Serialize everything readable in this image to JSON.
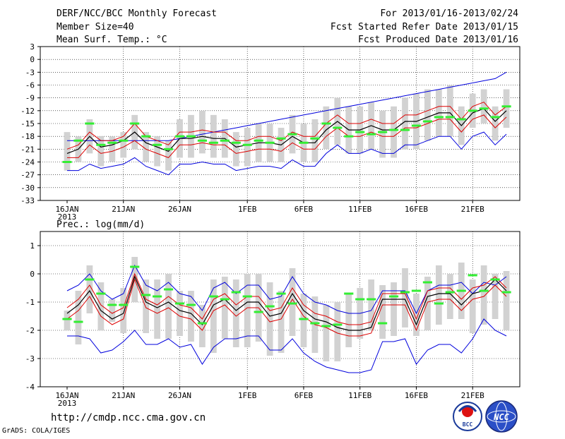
{
  "header": {
    "title_left": "DERF/NCC/BCC Monthly Forecast",
    "member_size": "Member Size=40",
    "variable_label": "Mean Surf. Temp.: °C",
    "period": "For 2013/01/16-2013/02/24",
    "started": "Fcst Started Refer Date 2013/01/15",
    "produced": "Fcst Produced Date 2013/01/16"
  },
  "footer": {
    "url": "http://cmdp.ncc.cma.gov.cn",
    "credit": "GrADS: COLA/IGES",
    "logo_bcc_text": "BCC",
    "logo_ncc_text": "NCC"
  },
  "colors": {
    "box": "#d2d2d2",
    "envelope": "#0000dd",
    "spread": "#dd0000",
    "mean": "#000000",
    "obs": "#33ee33",
    "grid": "#000000"
  },
  "chart_data": [
    {
      "type": "line",
      "title": "Mean Surf. Temp.: °C",
      "x_tick_labels": [
        "16JAN",
        "21JAN",
        "26JAN",
        "1FEB",
        "6FEB",
        "11FEB",
        "16FEB",
        "21FEB"
      ],
      "x_tick_days": [
        0,
        5,
        10,
        16,
        21,
        26,
        31,
        36
      ],
      "x_year_label": "2013",
      "days": 40,
      "ylim": [
        -33,
        3
      ],
      "y_ticks": [
        3,
        0,
        -3,
        -6,
        -9,
        -12,
        -15,
        -18,
        -21,
        -24,
        -27,
        -30,
        -33
      ],
      "series": [
        {
          "name": "ensemble max",
          "values": [
            -19,
            -19,
            -19,
            -19,
            -19,
            -19,
            -19,
            -19,
            -19,
            -19,
            -18.5,
            -18,
            -17.5,
            -17,
            -16.5,
            -16,
            -15.5,
            -15,
            -14.5,
            -14,
            -13.5,
            -13,
            -12.5,
            -12,
            -11.5,
            -11,
            -10.5,
            -10,
            -9.5,
            -9,
            -8.5,
            -8,
            -7.5,
            -7,
            -6.5,
            -6,
            -5.5,
            -5,
            -4.5,
            -3
          ]
        },
        {
          "name": "upper spread",
          "values": [
            -21,
            -20,
            -17,
            -19,
            -19,
            -18,
            -15,
            -18,
            -19,
            -20,
            -17,
            -17,
            -16.5,
            -17,
            -17,
            -19,
            -19,
            -18,
            -18,
            -19,
            -17,
            -18,
            -18,
            -15,
            -13,
            -15,
            -15,
            -14,
            -15,
            -15,
            -13,
            -13,
            -12,
            -11,
            -11,
            -14,
            -11,
            -10,
            -13,
            -11
          ]
        },
        {
          "name": "ensemble mean",
          "values": [
            -22,
            -21,
            -18,
            -20.5,
            -20,
            -19,
            -17,
            -19.5,
            -20.5,
            -21.5,
            -18.5,
            -18.5,
            -18,
            -18.5,
            -18.5,
            -20.5,
            -20,
            -19.5,
            -19.5,
            -20,
            -18,
            -19.5,
            -19.5,
            -16.5,
            -14.5,
            -16.5,
            -16.5,
            -15.5,
            -16.5,
            -16.5,
            -14.5,
            -14.5,
            -13.5,
            -12.5,
            -12.5,
            -15.5,
            -12.5,
            -11.5,
            -14.5,
            -12
          ]
        },
        {
          "name": "lower spread",
          "values": [
            -23,
            -23,
            -20,
            -22,
            -21.5,
            -20.5,
            -19,
            -21,
            -22,
            -23,
            -20,
            -20,
            -19.5,
            -20,
            -20,
            -22,
            -21.5,
            -21,
            -21,
            -21.5,
            -19.5,
            -21,
            -21,
            -18,
            -16,
            -18,
            -18,
            -17,
            -18,
            -18,
            -16,
            -16,
            -15,
            -14,
            -14,
            -17,
            -14,
            -13,
            -16,
            -13.5
          ]
        },
        {
          "name": "ensemble min",
          "values": [
            -26,
            -26,
            -24.5,
            -25.5,
            -25,
            -24.5,
            -23,
            -25,
            -26,
            -27,
            -24.5,
            -24.5,
            -24,
            -24.5,
            -24.5,
            -26,
            -25.5,
            -25,
            -25,
            -25.5,
            -23.5,
            -25,
            -25,
            -22,
            -20,
            -22,
            -22,
            -21,
            -22,
            -22,
            -20,
            -20,
            -19,
            -18,
            -18,
            -21,
            -18,
            -17,
            -20,
            -17.5
          ]
        },
        {
          "name": "observed",
          "values": [
            -24,
            -19,
            -15,
            -20,
            -19.5,
            -19,
            -15,
            -18,
            -20,
            -21,
            -18,
            -18,
            -19,
            -19.5,
            -19,
            -19.5,
            -20,
            -19,
            -19.5,
            -18.5,
            -17.5,
            -19.5,
            -18.5,
            -15,
            -16,
            -18,
            -17,
            -17.5,
            -17,
            -16.5,
            -16.5,
            -15.5,
            -14.5,
            -13.5,
            -13.5,
            -14,
            -12,
            -11.5,
            -13.5,
            -11
          ]
        }
      ],
      "box_ranges": [
        [
          -26,
          -17
        ],
        [
          -24,
          -18
        ],
        [
          -22,
          -14
        ],
        [
          -25,
          -18
        ],
        [
          -24,
          -18
        ],
        [
          -23,
          -17
        ],
        [
          -21,
          -13
        ],
        [
          -24,
          -17
        ],
        [
          -25,
          -18
        ],
        [
          -26,
          -19
        ],
        [
          -23,
          -14
        ],
        [
          -23,
          -13
        ],
        [
          -22,
          -12
        ],
        [
          -23,
          -13
        ],
        [
          -23,
          -14
        ],
        [
          -25,
          -17
        ],
        [
          -25,
          -16
        ],
        [
          -24,
          -15
        ],
        [
          -24,
          -15
        ],
        [
          -24,
          -16
        ],
        [
          -22,
          -13
        ],
        [
          -24,
          -15
        ],
        [
          -24,
          -14
        ],
        [
          -21,
          -11
        ],
        [
          -20,
          -9
        ],
        [
          -22,
          -11
        ],
        [
          -22,
          -11
        ],
        [
          -21,
          -10
        ],
        [
          -23,
          -12
        ],
        [
          -23,
          -11
        ],
        [
          -21,
          -9
        ],
        [
          -21,
          -8
        ],
        [
          -19,
          -7
        ],
        [
          -18,
          -7
        ],
        [
          -18,
          -6
        ],
        [
          -20,
          -11
        ],
        [
          -16,
          -8
        ],
        [
          -15,
          -7
        ],
        [
          -19,
          -11
        ],
        [
          -16,
          -7
        ]
      ]
    },
    {
      "type": "line",
      "title": "Prec.: log(mm/d)",
      "x_tick_labels": [
        "16JAN",
        "21JAN",
        "26JAN",
        "1FEB",
        "6FEB",
        "11FEB",
        "16FEB",
        "21FEB"
      ],
      "x_tick_days": [
        0,
        5,
        10,
        16,
        21,
        26,
        31,
        36
      ],
      "x_year_label": "2013",
      "days": 40,
      "ylim": [
        -4,
        1.5
      ],
      "y_ticks": [
        1,
        0,
        -1,
        -2,
        -3,
        -4
      ],
      "series": [
        {
          "name": "ensemble max",
          "values": [
            -0.6,
            -0.4,
            0,
            -0.6,
            -0.9,
            -0.7,
            0.3,
            -0.4,
            -0.6,
            -0.3,
            -0.7,
            -0.8,
            -1.3,
            -0.5,
            -0.3,
            -0.7,
            -0.4,
            -0.4,
            -0.9,
            -0.8,
            -0.1,
            -0.7,
            -1,
            -1.1,
            -1.3,
            -1.4,
            -1.4,
            -1.3,
            -0.6,
            -0.6,
            -0.6,
            -1.4,
            -0.6,
            -0.4,
            -0.4,
            -0.3,
            -0.7,
            -0.3,
            -0.4,
            -0.1
          ]
        },
        {
          "name": "upper spread",
          "values": [
            -1.2,
            -0.9,
            -0.4,
            -1.1,
            -1.4,
            -1.2,
            0,
            -0.9,
            -1.1,
            -0.8,
            -1.1,
            -1.2,
            -1.6,
            -0.9,
            -0.7,
            -1.1,
            -0.8,
            -0.8,
            -1.3,
            -1.2,
            -0.5,
            -1.1,
            -1.4,
            -1.5,
            -1.7,
            -1.8,
            -1.8,
            -1.7,
            -0.7,
            -0.7,
            -0.7,
            -1.6,
            -0.6,
            -0.5,
            -0.5,
            -0.9,
            -0.5,
            -0.4,
            -0.1,
            -0.5
          ]
        },
        {
          "name": "ensemble mean",
          "values": [
            -1.4,
            -1.1,
            -0.6,
            -1.3,
            -1.6,
            -1.4,
            -0.1,
            -1,
            -1.2,
            -1,
            -1.3,
            -1.4,
            -1.8,
            -1.1,
            -0.9,
            -1.3,
            -1,
            -1,
            -1.5,
            -1.4,
            -0.7,
            -1.3,
            -1.6,
            -1.7,
            -1.9,
            -2,
            -2,
            -1.9,
            -0.9,
            -0.9,
            -0.9,
            -1.8,
            -0.8,
            -0.7,
            -0.7,
            -1.1,
            -0.7,
            -0.6,
            -0.2,
            -0.6
          ]
        },
        {
          "name": "lower spread",
          "values": [
            -1.6,
            -1.3,
            -0.8,
            -1.5,
            -1.8,
            -1.6,
            -0.2,
            -1.2,
            -1.4,
            -1.2,
            -1.5,
            -1.6,
            -2,
            -1.3,
            -1.1,
            -1.5,
            -1.2,
            -1.2,
            -1.7,
            -1.6,
            -0.9,
            -1.5,
            -1.8,
            -1.9,
            -2.1,
            -2.2,
            -2.2,
            -2.1,
            -1.1,
            -1.1,
            -1.1,
            -2,
            -1,
            -0.9,
            -0.9,
            -1.3,
            -0.9,
            -0.8,
            -0.4,
            -0.8
          ]
        },
        {
          "name": "ensemble min",
          "values": [
            -2.2,
            -2.2,
            -2.3,
            -2.8,
            -2.7,
            -2.4,
            -2,
            -2.5,
            -2.5,
            -2.3,
            -2.6,
            -2.5,
            -3.2,
            -2.6,
            -2.3,
            -2.3,
            -2.2,
            -2.2,
            -2.7,
            -2.7,
            -2.3,
            -2.8,
            -3.1,
            -3.3,
            -3.4,
            -3.5,
            -3.5,
            -3.4,
            -2.4,
            -2.4,
            -2.3,
            -3.2,
            -2.7,
            -2.5,
            -2.5,
            -2.8,
            -2.3,
            -1.6,
            -2,
            -2.2
          ]
        },
        {
          "name": "observed",
          "values": [
            -1.6,
            -1.7,
            -0.2,
            -0.7,
            -1.1,
            -1.1,
            0.25,
            -0.75,
            -0.8,
            -0.55,
            -1.05,
            -1.1,
            -1.75,
            -0.8,
            -0.9,
            -0.65,
            -0.8,
            -1.35,
            -1.15,
            -0.7,
            -1.05,
            -1.6,
            -1.75,
            -1.85,
            -1.8,
            -0.7,
            -0.9,
            -0.9,
            -1.75,
            -0.8,
            -0.65,
            -0.6,
            -0.3,
            -1.05,
            -0.65,
            -0.6,
            -0.05,
            -0.6,
            -0.2,
            -0.65
          ]
        }
      ],
      "box_ranges": [
        [
          -2,
          -1.3
        ],
        [
          -2.5,
          -0.6
        ],
        [
          -1.4,
          0.3
        ],
        [
          -2,
          -0.3
        ],
        [
          -1.7,
          -0.9
        ],
        [
          -2.1,
          -0.5
        ],
        [
          -1,
          0.6
        ],
        [
          -2.1,
          -0.2
        ],
        [
          -2.3,
          -0.2
        ],
        [
          -2.3,
          0
        ],
        [
          -2.2,
          -0.6
        ],
        [
          -2.4,
          -0.6
        ],
        [
          -2.6,
          -1.1
        ],
        [
          -2.8,
          -0.2
        ],
        [
          -2.3,
          -0.1
        ],
        [
          -2.6,
          -0.2
        ],
        [
          -2.6,
          0
        ],
        [
          -2.4,
          0
        ],
        [
          -2.9,
          -0.3
        ],
        [
          -2.8,
          -0.6
        ],
        [
          -2.2,
          0.2
        ],
        [
          -2.6,
          -0.7
        ],
        [
          -2.8,
          -0.8
        ],
        [
          -3.1,
          -1.1
        ],
        [
          -3.1,
          -1
        ],
        [
          -2.6,
          -0.7
        ],
        [
          -2.3,
          -0.5
        ],
        [
          -2,
          -0.2
        ],
        [
          -2.3,
          -0.4
        ],
        [
          -2.2,
          -0.3
        ],
        [
          -1.9,
          0.2
        ],
        [
          -2.2,
          -0.7
        ],
        [
          -2,
          -0.1
        ],
        [
          -1.8,
          0.3
        ],
        [
          -1.6,
          0
        ],
        [
          -1.6,
          0.4
        ],
        [
          -2.1,
          -0.2
        ],
        [
          -1.8,
          0.3
        ],
        [
          -1.6,
          0
        ],
        [
          -2,
          0.1
        ]
      ]
    }
  ]
}
